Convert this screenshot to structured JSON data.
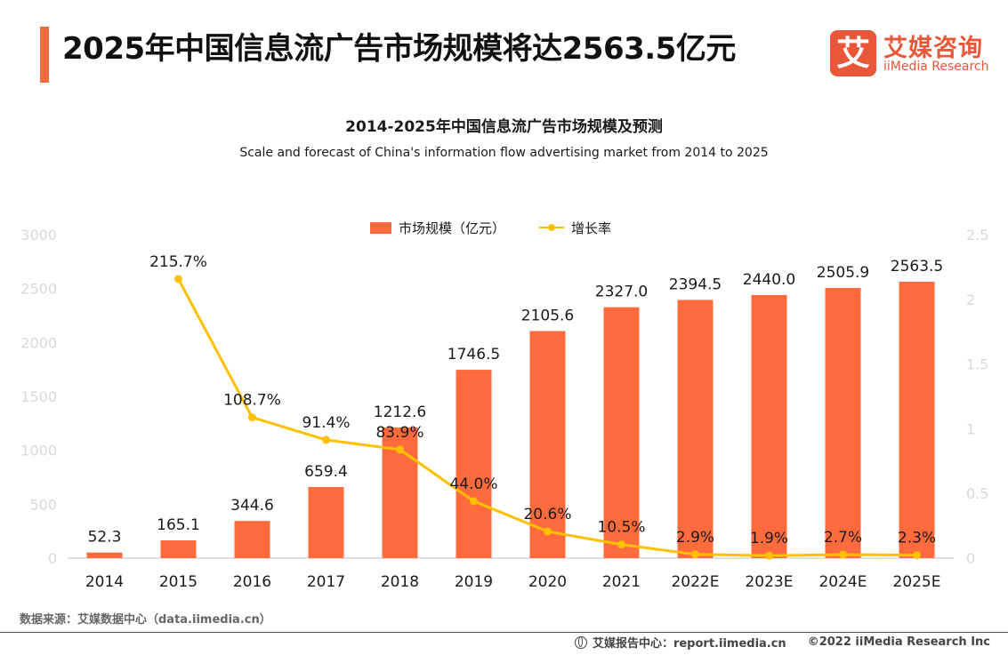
{
  "header": {
    "title": "2025年中国信息流广告市场规模将达2563.5亿元",
    "logo_mark": "艾",
    "logo_cn": "艾媒咨询",
    "logo_en": "iiMedia Research"
  },
  "footer": {
    "source": "数据来源：艾媒数据中心（data.iimedia.cn）",
    "report": "艾媒报告中心：report.iimedia.cn",
    "copyright": "©2022  iiMedia Research  Inc"
  },
  "colors": {
    "accent": "#f26b3a",
    "bar": "#ff6b3d",
    "line": "#ffc000"
  },
  "chart_data": {
    "type": "bar",
    "title": "2014-2025年中国信息流广告市场规模及预测",
    "subtitle": "Scale and forecast of China's information flow advertising market from 2014 to 2025",
    "categories": [
      "2014",
      "2015",
      "2016",
      "2017",
      "2018",
      "2019",
      "2020",
      "2021",
      "2022E",
      "2023E",
      "2024E",
      "2025E"
    ],
    "series": [
      {
        "name": "市场规模（亿元）",
        "type": "bar",
        "axis": "left",
        "values": [
          52.3,
          165.1,
          344.6,
          659.4,
          1212.6,
          1746.5,
          2105.6,
          2327.0,
          2394.5,
          2440.0,
          2505.9,
          2563.5
        ],
        "labels": [
          "52.3",
          "165.1",
          "344.6",
          "659.4",
          "1212.6",
          "1746.5",
          "2105.6",
          "2327.0",
          "2394.5",
          "2440.0",
          "2505.9",
          "2563.5"
        ]
      },
      {
        "name": "增长率",
        "type": "line",
        "axis": "right",
        "values": [
          null,
          2.157,
          1.087,
          0.914,
          0.839,
          0.44,
          0.206,
          0.105,
          0.029,
          0.019,
          0.027,
          0.023
        ],
        "labels": [
          "",
          "215.7%",
          "108.7%",
          "91.4%",
          "83.9%",
          "44.0%",
          "20.6%",
          "10.5%",
          "2.9%",
          "1.9%",
          "2.7%",
          "2.3%"
        ]
      }
    ],
    "y_left": {
      "ylim": [
        0,
        3000
      ],
      "ticks": [
        "0",
        "500",
        "1000",
        "1500",
        "2000",
        "2500",
        "3000"
      ]
    },
    "y_right": {
      "ylim": [
        0,
        2.5
      ],
      "ticks": [
        "0",
        "0.5",
        "1",
        "1.5",
        "2",
        "2.5"
      ]
    },
    "legend": "top-center",
    "grid": false
  }
}
